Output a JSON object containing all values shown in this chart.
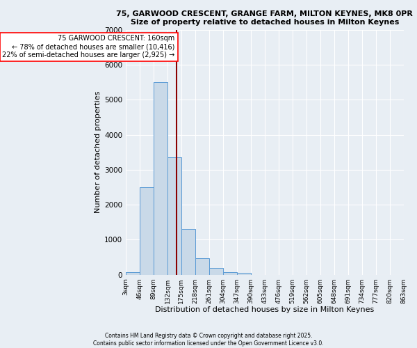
{
  "title_line1": "75, GARWOOD CRESCENT, GRANGE FARM, MILTON KEYNES, MK8 0PR",
  "title_line2": "Size of property relative to detached houses in Milton Keynes",
  "xlabel": "Distribution of detached houses by size in Milton Keynes",
  "ylabel": "Number of detached properties",
  "bin_edges": [
    3,
    46,
    89,
    132,
    175,
    218,
    261,
    304,
    347,
    390,
    433,
    476,
    519,
    562,
    605,
    648,
    691,
    734,
    777,
    820,
    863
  ],
  "bin_labels": [
    "3sqm",
    "46sqm",
    "89sqm",
    "132sqm",
    "175sqm",
    "218sqm",
    "261sqm",
    "304sqm",
    "347sqm",
    "390sqm",
    "433sqm",
    "476sqm",
    "519sqm",
    "562sqm",
    "605sqm",
    "648sqm",
    "691sqm",
    "734sqm",
    "777sqm",
    "820sqm",
    "863sqm"
  ],
  "bar_heights": [
    75,
    2500,
    5500,
    3350,
    1300,
    460,
    190,
    80,
    50,
    0,
    0,
    0,
    0,
    0,
    0,
    0,
    0,
    0,
    0,
    0
  ],
  "bar_color": "#c9d9e8",
  "bar_edgecolor": "#5b9bd5",
  "property_size": 160,
  "vline_color": "#8b0000",
  "annotation_text": "75 GARWOOD CRESCENT: 160sqm\n← 78% of detached houses are smaller (10,416)\n22% of semi-detached houses are larger (2,925) →",
  "annotation_box_color": "white",
  "annotation_box_edgecolor": "red",
  "ylim": [
    0,
    7000
  ],
  "yticks": [
    0,
    1000,
    2000,
    3000,
    4000,
    5000,
    6000,
    7000
  ],
  "bg_color": "#e8eef4",
  "grid_color": "white",
  "footer_line1": "Contains HM Land Registry data © Crown copyright and database right 2025.",
  "footer_line2": "Contains public sector information licensed under the Open Government Licence v3.0."
}
